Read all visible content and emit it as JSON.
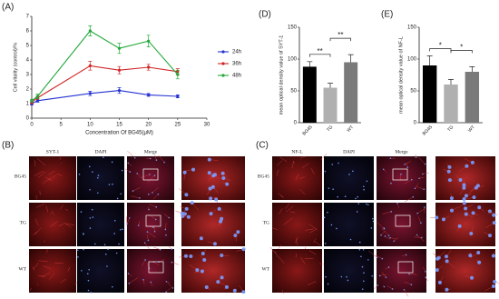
{
  "chart_data": [
    {
      "type": "line",
      "label": "(A)",
      "x_label": "Concentration Of BG45(μM)",
      "y_label": "Cell vitality (control)/%",
      "x": [
        0,
        1,
        10,
        15,
        20,
        25
      ],
      "xlim": [
        0,
        30
      ],
      "xticks": [
        0,
        5,
        10,
        15,
        20,
        25,
        30
      ],
      "ylim": [
        0,
        7
      ],
      "yticks": [
        0,
        1,
        2,
        3,
        4,
        5,
        6,
        7
      ],
      "series": [
        {
          "name": "24h",
          "color": "#2433d0",
          "values": [
            1.0,
            1.2,
            1.7,
            1.9,
            1.6,
            1.5
          ],
          "errors": [
            0.1,
            0.1,
            0.15,
            0.2,
            0.1,
            0.1
          ]
        },
        {
          "name": "36h",
          "color": "#d02424",
          "values": [
            1.1,
            1.4,
            3.6,
            3.3,
            3.5,
            3.2
          ],
          "errors": [
            0.1,
            0.1,
            0.3,
            0.25,
            0.2,
            0.2
          ]
        },
        {
          "name": "48h",
          "color": "#22a83a",
          "values": [
            1.2,
            1.5,
            6.0,
            4.8,
            5.3,
            3.0
          ],
          "errors": [
            0.1,
            0.15,
            0.35,
            0.35,
            0.4,
            0.3
          ]
        }
      ]
    },
    {
      "type": "bar",
      "label": "(D)",
      "y_label": "mean optical density value of SYT-1",
      "categories": [
        "BG45",
        "TG",
        "WT"
      ],
      "values": [
        88,
        55,
        95
      ],
      "errors": [
        8,
        7,
        12
      ],
      "colors": [
        "#000000",
        "#b0b0b0",
        "#7a7a7a"
      ],
      "ylim": [
        0,
        150
      ],
      "yticks": [
        0,
        50,
        100,
        150
      ],
      "significance": [
        {
          "label": "**",
          "pair": [
            "BG45",
            "TG"
          ]
        },
        {
          "label": "**",
          "pair": [
            "TG",
            "WT"
          ]
        }
      ]
    },
    {
      "type": "bar",
      "label": "(E)",
      "y_label": "mean optical density value of NF-L",
      "categories": [
        "BG45",
        "TG",
        "WT"
      ],
      "values": [
        90,
        60,
        80
      ],
      "errors": [
        15,
        8,
        8
      ],
      "colors": [
        "#000000",
        "#b0b0b0",
        "#7a7a7a"
      ],
      "ylim": [
        0,
        150
      ],
      "yticks": [
        0,
        50,
        100,
        150
      ],
      "significance": [
        {
          "label": "*",
          "pair": [
            "BG45",
            "TG"
          ]
        },
        {
          "label": "*",
          "pair": [
            "TG",
            "WT"
          ]
        }
      ]
    }
  ],
  "panels": [
    {
      "label": "(B)",
      "columns": [
        "SYT-1",
        "DAPI",
        "Merge"
      ],
      "rows": [
        "BG45",
        "TG",
        "WT"
      ]
    },
    {
      "label": "(C)",
      "columns": [
        "NF-L",
        "DAPI",
        "Merge"
      ],
      "rows": [
        "BG45",
        "TG",
        "WT"
      ]
    }
  ]
}
